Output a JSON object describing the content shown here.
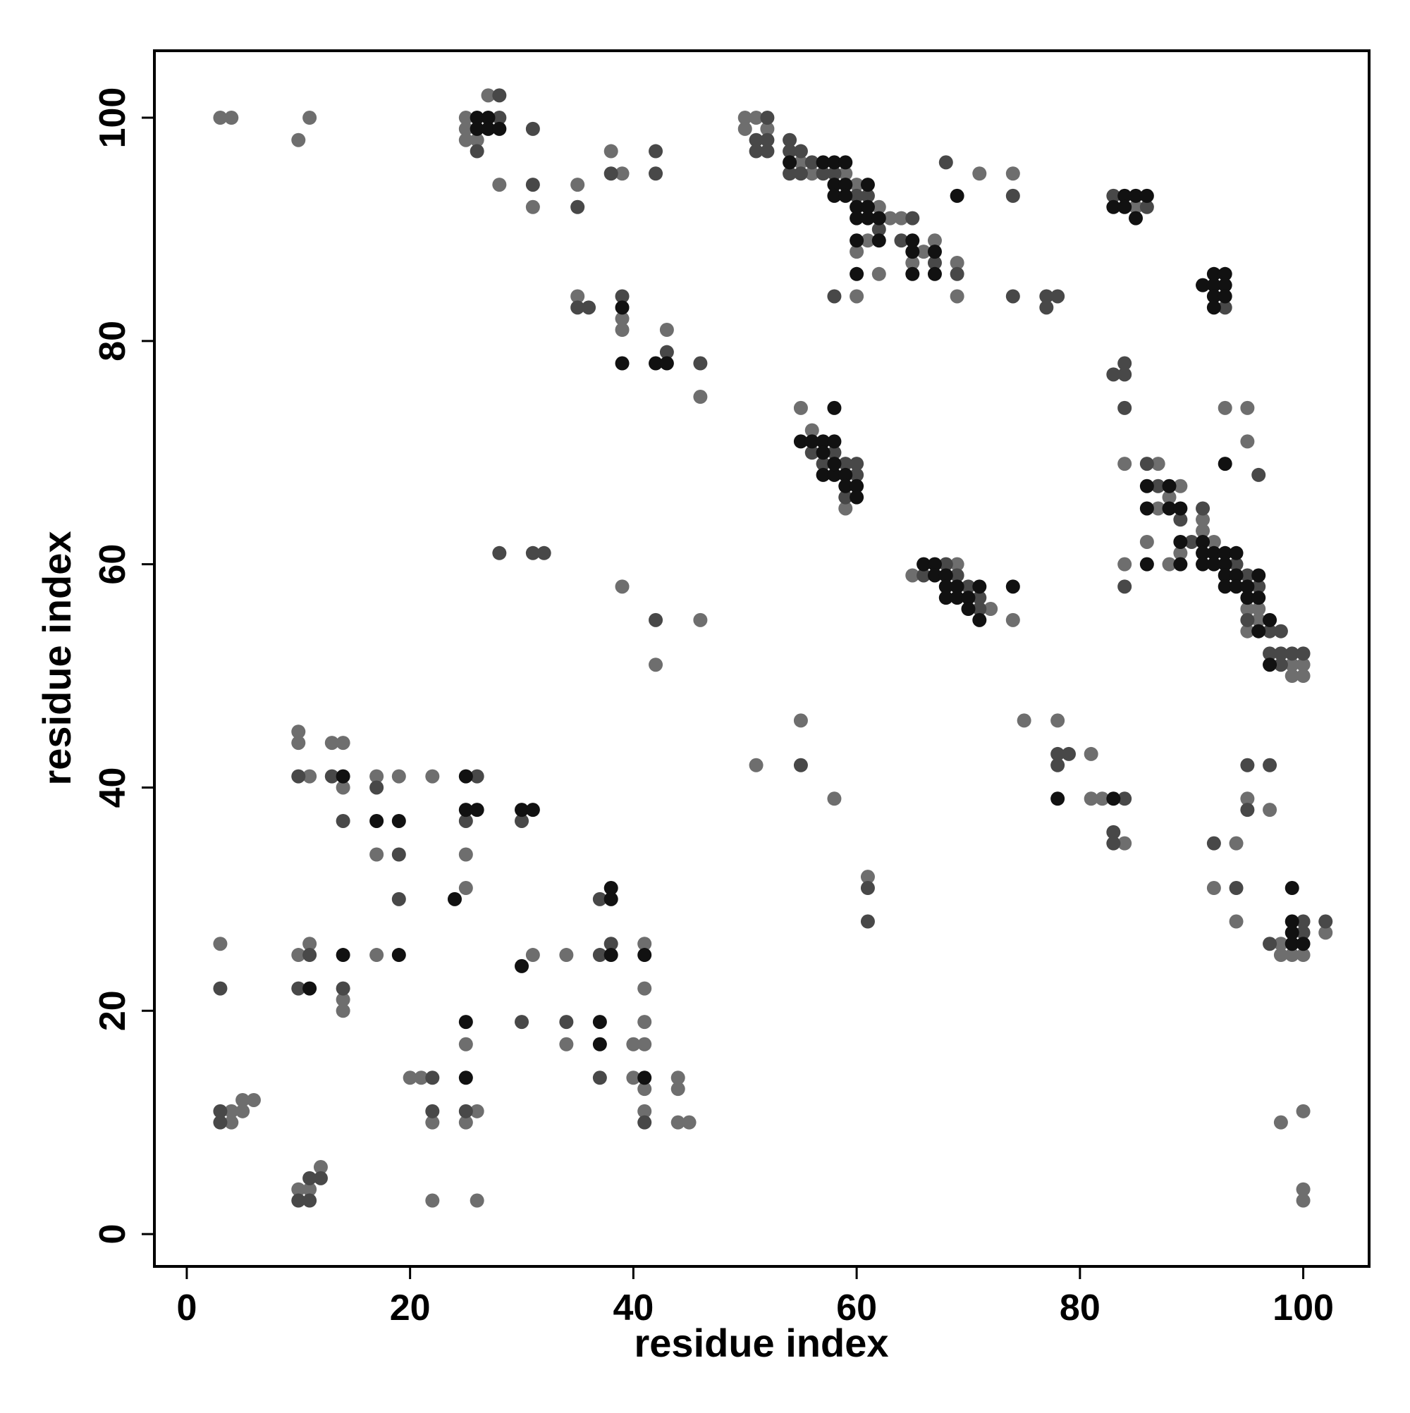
{
  "chart_data": {
    "type": "scatter",
    "xlabel": "residue index",
    "ylabel": "residue index",
    "xlim": [
      -2.9,
      105.9
    ],
    "ylim": [
      -2.9,
      106.0
    ],
    "xticks": [
      0,
      20,
      40,
      60,
      80,
      100
    ],
    "yticks": [
      0,
      20,
      40,
      60,
      80,
      100
    ],
    "grid": false,
    "series": [
      {
        "color": "#6e6e6e",
        "x": [
          3,
          4,
          10,
          11,
          25,
          25,
          25,
          26,
          27,
          28,
          31,
          35,
          38,
          39,
          50,
          50,
          51,
          52,
          55,
          56,
          59,
          60,
          62,
          63,
          64,
          65,
          66,
          67,
          69,
          69,
          60,
          61,
          62,
          60,
          71,
          74,
          85,
          35,
          39,
          39,
          43,
          46,
          84,
          87,
          88,
          89,
          87,
          86,
          88,
          89,
          91,
          91,
          92,
          95,
          95,
          96,
          96,
          99,
          99,
          100,
          100,
          84,
          93,
          95,
          95,
          55,
          56,
          59,
          65,
          69,
          72,
          74,
          39,
          46,
          42,
          51,
          55,
          58,
          75,
          78,
          81,
          81,
          82,
          84,
          61,
          95,
          97,
          94,
          92,
          94,
          102,
          98,
          98,
          99,
          100,
          98,
          100,
          100,
          100,
          10,
          10,
          11,
          13,
          14,
          14,
          17,
          19,
          17,
          22,
          25,
          25,
          3,
          10,
          11,
          14,
          14,
          17,
          4,
          4,
          5,
          5,
          6,
          10,
          11,
          12,
          20,
          21,
          22,
          22,
          25,
          25,
          26,
          26,
          31,
          34,
          34,
          40,
          41,
          40,
          41,
          41,
          41,
          41,
          41,
          44,
          44,
          44,
          45
        ],
        "values": [
          100,
          100,
          98,
          100,
          100,
          99,
          98,
          98,
          102,
          94,
          92,
          94,
          97,
          95,
          100,
          99,
          100,
          99,
          96,
          95,
          95,
          94,
          92,
          91,
          91,
          87,
          88,
          89,
          87,
          84,
          88,
          89,
          86,
          84,
          95,
          95,
          92,
          84,
          82,
          81,
          81,
          75,
          69,
          69,
          66,
          67,
          65,
          62,
          60,
          61,
          64,
          63,
          62,
          56,
          54,
          56,
          55,
          51,
          50,
          51,
          50,
          60,
          74,
          74,
          71,
          74,
          72,
          65,
          59,
          60,
          56,
          55,
          58,
          55,
          51,
          42,
          46,
          39,
          46,
          46,
          43,
          39,
          39,
          35,
          32,
          39,
          38,
          35,
          31,
          28,
          27,
          26,
          25,
          25,
          25,
          10,
          11,
          4,
          3,
          45,
          44,
          41,
          44,
          44,
          40,
          41,
          41,
          34,
          41,
          34,
          31,
          26,
          25,
          26,
          21,
          20,
          25,
          11,
          10,
          12,
          11,
          12,
          4,
          4,
          6,
          14,
          14,
          10,
          3,
          17,
          10,
          11,
          3,
          25,
          25,
          17,
          17,
          17,
          14,
          13,
          26,
          22,
          19,
          11,
          14,
          13,
          10,
          10
        ]
      },
      {
        "color": "#484848",
        "x": [
          26,
          28,
          28,
          31,
          31,
          35,
          38,
          42,
          42,
          51,
          51,
          52,
          52,
          52,
          54,
          54,
          54,
          55,
          55,
          56,
          57,
          58,
          60,
          61,
          62,
          65,
          64,
          67,
          69,
          58,
          68,
          74,
          74,
          77,
          77,
          78,
          83,
          86,
          93,
          35,
          36,
          39,
          43,
          46,
          83,
          84,
          84,
          84,
          86,
          87,
          89,
          90,
          91,
          94,
          95,
          95,
          96,
          97,
          98,
          97,
          98,
          98,
          99,
          100,
          84,
          96,
          58,
          56,
          57,
          59,
          59,
          60,
          60,
          66,
          68,
          69,
          70,
          71,
          71,
          28,
          31,
          32,
          42,
          55,
          78,
          78,
          79,
          84,
          83,
          83,
          61,
          61,
          95,
          97,
          95,
          92,
          94,
          100,
          100,
          102,
          97,
          10,
          13,
          14,
          17,
          19,
          19,
          26,
          25,
          30,
          3,
          11,
          10,
          14,
          3,
          3,
          10,
          11,
          11,
          12,
          22,
          22,
          25,
          30,
          34,
          37,
          37,
          38,
          37,
          41
        ],
        "values": [
          97,
          102,
          100,
          99,
          94,
          92,
          95,
          97,
          95,
          98,
          97,
          100,
          98,
          97,
          98,
          97,
          95,
          97,
          95,
          96,
          95,
          95,
          93,
          93,
          90,
          91,
          89,
          87,
          86,
          84,
          96,
          93,
          84,
          84,
          83,
          84,
          93,
          92,
          83,
          83,
          83,
          84,
          79,
          78,
          77,
          78,
          77,
          74,
          69,
          67,
          64,
          62,
          65,
          60,
          59,
          55,
          58,
          54,
          54,
          52,
          52,
          51,
          52,
          52,
          58,
          68,
          70,
          70,
          69,
          69,
          66,
          69,
          68,
          59,
          60,
          59,
          58,
          57,
          56,
          61,
          61,
          61,
          55,
          42,
          43,
          42,
          43,
          39,
          36,
          35,
          31,
          28,
          42,
          42,
          38,
          35,
          31,
          28,
          27,
          28,
          26,
          41,
          41,
          37,
          40,
          34,
          30,
          41,
          37,
          37,
          22,
          25,
          22,
          22,
          11,
          10,
          3,
          5,
          3,
          5,
          14,
          11,
          11,
          19,
          19,
          30,
          25,
          26,
          14,
          10
        ]
      },
      {
        "color": "#111111",
        "x": [
          26,
          26,
          27,
          27,
          28,
          54,
          57,
          58,
          58,
          58,
          59,
          59,
          59,
          60,
          60,
          61,
          61,
          61,
          62,
          65,
          65,
          65,
          67,
          67,
          60,
          62,
          60,
          69,
          83,
          84,
          84,
          85,
          85,
          86,
          91,
          92,
          92,
          92,
          92,
          93,
          93,
          93,
          39,
          39,
          42,
          43,
          86,
          88,
          86,
          88,
          89,
          86,
          89,
          89,
          91,
          91,
          91,
          92,
          92,
          93,
          93,
          93,
          93,
          94,
          94,
          94,
          95,
          95,
          96,
          96,
          96,
          97,
          97,
          93,
          55,
          56,
          57,
          58,
          58,
          57,
          57,
          58,
          58,
          59,
          59,
          60,
          60,
          66,
          67,
          67,
          68,
          68,
          68,
          69,
          69,
          70,
          70,
          71,
          71,
          74,
          78,
          83,
          99,
          99,
          99,
          99,
          100,
          14,
          17,
          19,
          25,
          25,
          26,
          24,
          30,
          31,
          11,
          14,
          19,
          25,
          25,
          30,
          38,
          38,
          38,
          37,
          37,
          41,
          41
        ],
        "values": [
          100,
          99,
          100,
          99,
          99,
          96,
          96,
          96,
          94,
          93,
          96,
          94,
          93,
          92,
          91,
          94,
          92,
          91,
          91,
          89,
          88,
          86,
          88,
          86,
          89,
          89,
          86,
          93,
          92,
          93,
          92,
          93,
          91,
          93,
          85,
          86,
          85,
          84,
          83,
          86,
          85,
          84,
          83,
          78,
          78,
          78,
          67,
          67,
          65,
          65,
          65,
          60,
          60,
          62,
          62,
          61,
          60,
          61,
          60,
          61,
          60,
          59,
          58,
          61,
          59,
          58,
          58,
          57,
          59,
          57,
          54,
          55,
          51,
          69,
          71,
          71,
          71,
          71,
          74,
          70,
          68,
          68,
          69,
          68,
          67,
          67,
          66,
          60,
          60,
          59,
          59,
          58,
          57,
          58,
          57,
          57,
          56,
          58,
          55,
          58,
          39,
          39,
          31,
          28,
          27,
          26,
          26,
          41,
          37,
          37,
          41,
          38,
          38,
          30,
          38,
          38,
          22,
          25,
          25,
          19,
          14,
          24,
          31,
          30,
          25,
          19,
          17,
          14,
          25
        ]
      }
    ]
  }
}
